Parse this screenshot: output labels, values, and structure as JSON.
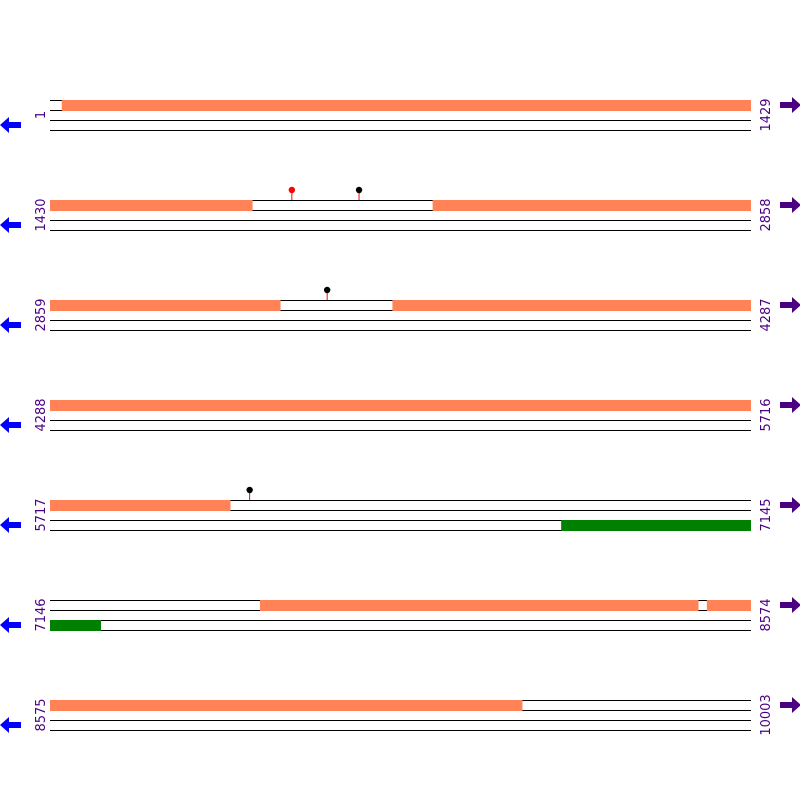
{
  "colors": {
    "feature": "#ff8356",
    "orf": "#008000",
    "forward_arrow": "#4b0082",
    "reverse_arrow": "#0000ff",
    "site_red": "#ff0000",
    "site_black": "#000000",
    "stem": "#ff0000",
    "track_line": "#000000"
  },
  "icons": {
    "forward": "right-arrow-icon",
    "reverse": "left-arrow-icon"
  },
  "rows": [
    {
      "start_label": "1",
      "end_label": "1429",
      "range": [
        1,
        1429
      ],
      "top_features": [
        [
          25,
          1429
        ]
      ],
      "bottom_features": [],
      "sites": []
    },
    {
      "start_label": "1430",
      "end_label": "2858",
      "range": [
        1430,
        2858
      ],
      "top_features": [
        [
          1430,
          1842
        ],
        [
          2210,
          2858
        ]
      ],
      "bottom_features": [],
      "sites": [
        {
          "pos": 1923,
          "color": "red"
        },
        {
          "pos": 2060,
          "color": "black"
        }
      ]
    },
    {
      "start_label": "2859",
      "end_label": "4287",
      "range": [
        2859,
        4287
      ],
      "top_features": [
        [
          2859,
          3328
        ],
        [
          3557,
          4287
        ]
      ],
      "bottom_features": [],
      "sites": [
        {
          "pos": 3424,
          "color": "black"
        }
      ]
    },
    {
      "start_label": "4288",
      "end_label": "5716",
      "range": [
        4288,
        5716
      ],
      "top_features": [
        [
          4288,
          5716
        ]
      ],
      "bottom_features": [],
      "sites": []
    },
    {
      "start_label": "5717",
      "end_label": "7145",
      "range": [
        5717,
        7145
      ],
      "top_features": [
        [
          5717,
          6084
        ]
      ],
      "bottom_features": [
        [
          6759,
          7145
        ]
      ],
      "sites": [
        {
          "pos": 6124,
          "color": "black"
        }
      ]
    },
    {
      "start_label": "7146",
      "end_label": "8574",
      "range": [
        7146,
        8574
      ],
      "top_features": [
        [
          7574,
          8467
        ],
        [
          8485,
          8574
        ]
      ],
      "bottom_features": [
        [
          7146,
          7249
        ]
      ],
      "sites": []
    },
    {
      "start_label": "8575",
      "end_label": "10003",
      "range": [
        8575,
        10003
      ],
      "top_features": [
        [
          8575,
          9537
        ]
      ],
      "bottom_features": [],
      "sites": []
    }
  ]
}
